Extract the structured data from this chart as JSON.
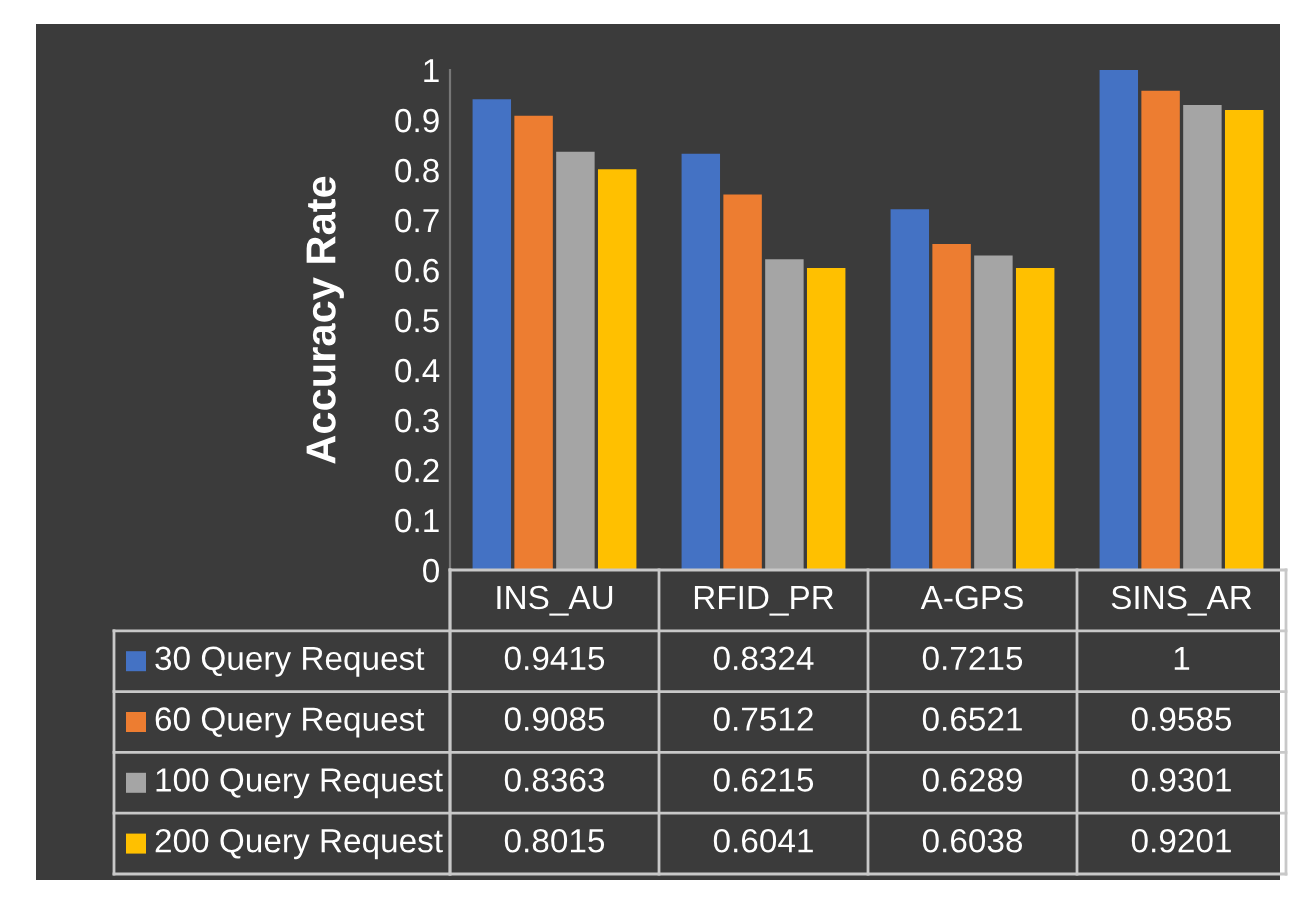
{
  "chart_data": {
    "type": "bar",
    "ylabel": "Accuracy Rate",
    "categories": [
      "INS_AU",
      "RFID_PR",
      "A-GPS",
      "SINS_AR"
    ],
    "series": [
      {
        "name": "30 Query Request",
        "color": "#4472c4",
        "values": [
          0.9415,
          0.8324,
          0.7215,
          1
        ]
      },
      {
        "name": "60 Query Request",
        "color": "#ed7d31",
        "values": [
          0.9085,
          0.7512,
          0.6521,
          0.9585
        ]
      },
      {
        "name": "100 Query Request",
        "color": "#a5a5a5",
        "values": [
          0.8363,
          0.6215,
          0.6289,
          0.9301
        ]
      },
      {
        "name": "200 Query Request",
        "color": "#ffc000",
        "values": [
          0.8015,
          0.6041,
          0.6038,
          0.9201
        ]
      }
    ],
    "ylim": [
      0,
      1
    ],
    "yticks": [
      0,
      0.1,
      0.2,
      0.3,
      0.4,
      0.5,
      0.6,
      0.7,
      0.8,
      0.9,
      1
    ],
    "grid": false,
    "legend": "bottom",
    "data_labels": true
  }
}
